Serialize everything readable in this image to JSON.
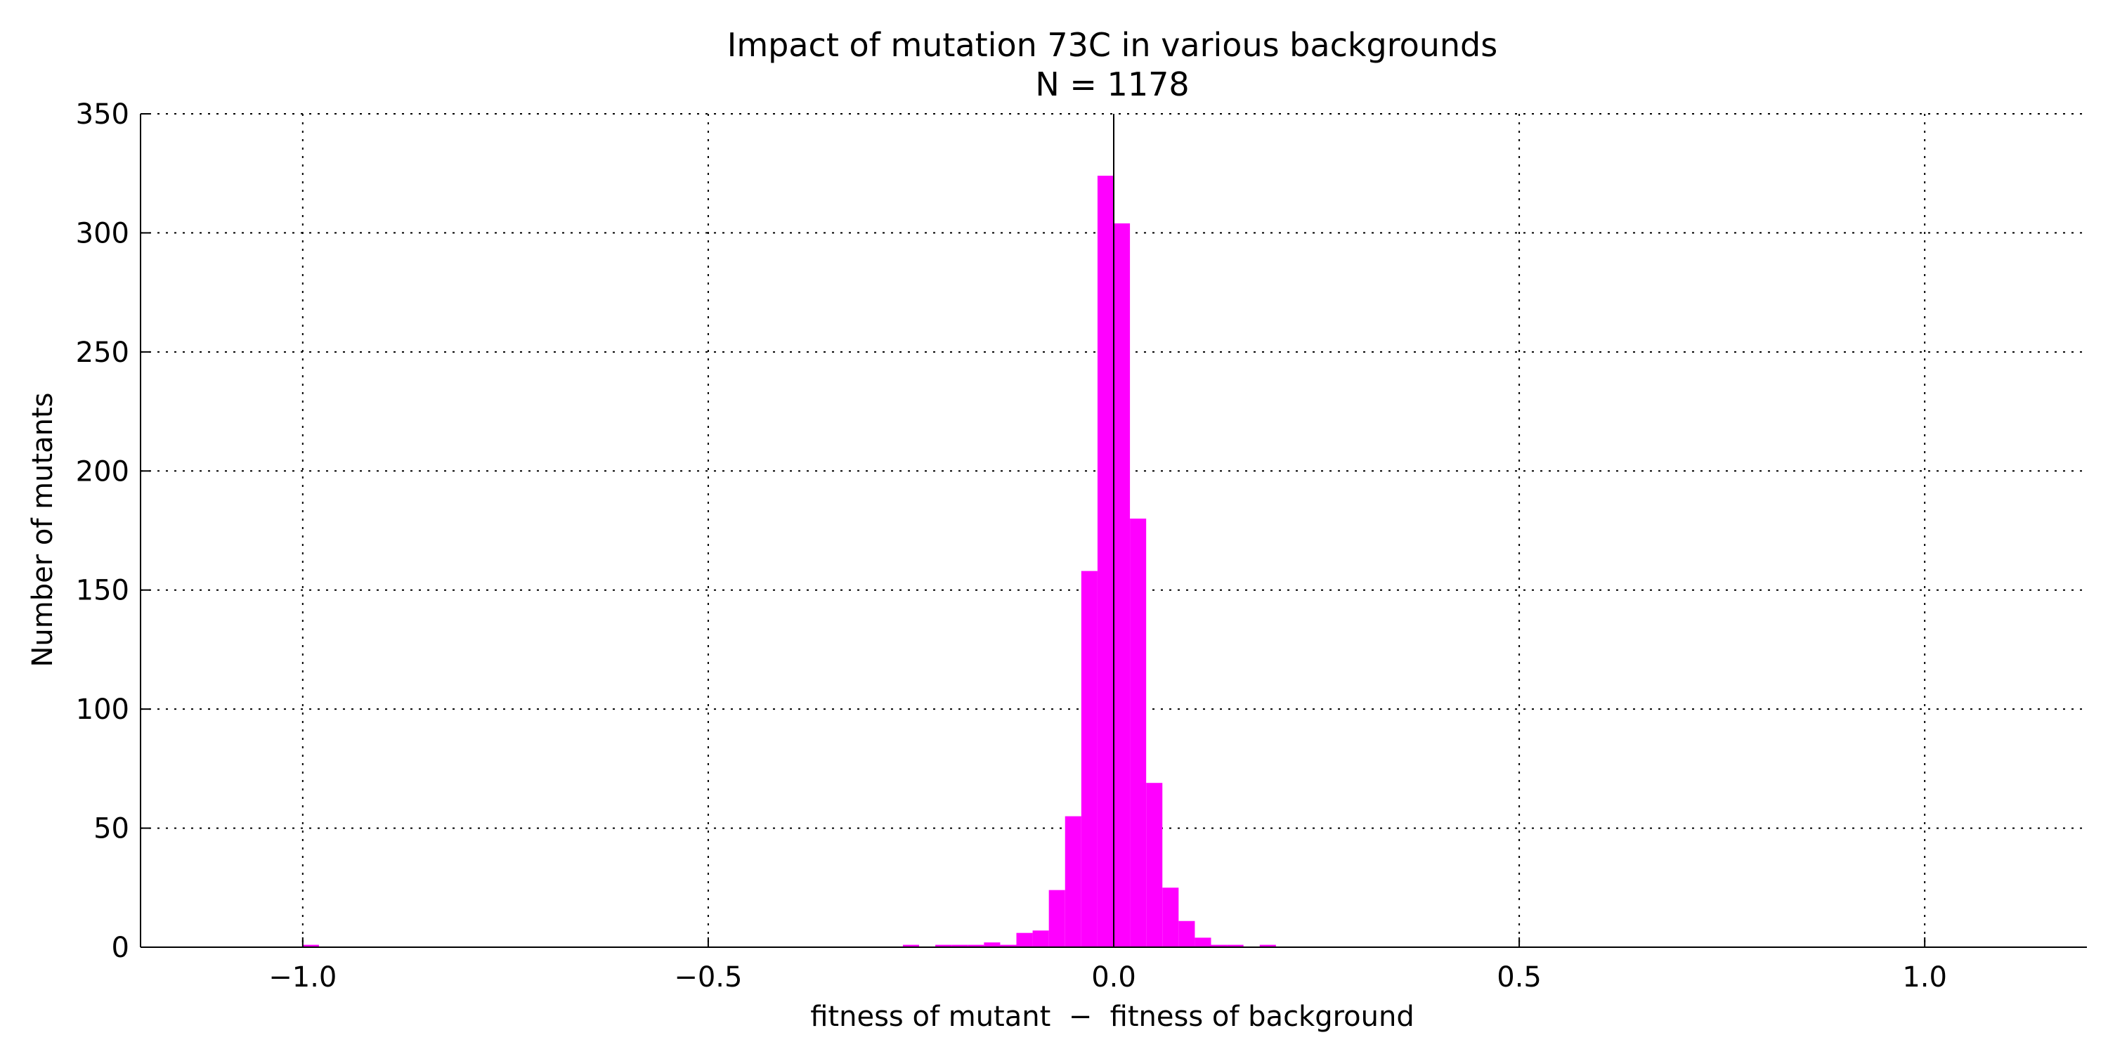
{
  "chart_data": {
    "type": "bar",
    "title": "Impact of mutation 73C in various backgrounds",
    "subtitle": "N = 1178",
    "xlabel": "fitness of mutant  −  fitness of background",
    "ylabel": "Number of mutants",
    "xlim": [
      -1.2,
      1.2
    ],
    "ylim": [
      0,
      350
    ],
    "x_ticks": [
      -1.0,
      -0.5,
      0.0,
      0.5,
      1.0
    ],
    "x_tick_labels": [
      "−1.0",
      "−0.5",
      "0.0",
      "0.5",
      "1.0"
    ],
    "y_ticks": [
      0,
      50,
      100,
      150,
      200,
      250,
      300,
      350
    ],
    "y_tick_labels": [
      "0",
      "50",
      "100",
      "150",
      "200",
      "250",
      "300",
      "350"
    ],
    "grid": true,
    "bar_color": "#ff00ff",
    "bin_width": 0.02,
    "bins": [
      {
        "x0": -1.0,
        "count": 1
      },
      {
        "x0": -0.26,
        "count": 1
      },
      {
        "x0": -0.22,
        "count": 1
      },
      {
        "x0": -0.2,
        "count": 1
      },
      {
        "x0": -0.18,
        "count": 1
      },
      {
        "x0": -0.16,
        "count": 2
      },
      {
        "x0": -0.14,
        "count": 1
      },
      {
        "x0": -0.12,
        "count": 6
      },
      {
        "x0": -0.1,
        "count": 7
      },
      {
        "x0": -0.08,
        "count": 24
      },
      {
        "x0": -0.06,
        "count": 55
      },
      {
        "x0": -0.04,
        "count": 158
      },
      {
        "x0": -0.02,
        "count": 324
      },
      {
        "x0": 0.0,
        "count": 304
      },
      {
        "x0": 0.02,
        "count": 180
      },
      {
        "x0": 0.04,
        "count": 69
      },
      {
        "x0": 0.06,
        "count": 25
      },
      {
        "x0": 0.08,
        "count": 11
      },
      {
        "x0": 0.1,
        "count": 4
      },
      {
        "x0": 0.12,
        "count": 1
      },
      {
        "x0": 0.14,
        "count": 1
      },
      {
        "x0": 0.18,
        "count": 1
      }
    ],
    "reference_line_x": 0.0
  }
}
